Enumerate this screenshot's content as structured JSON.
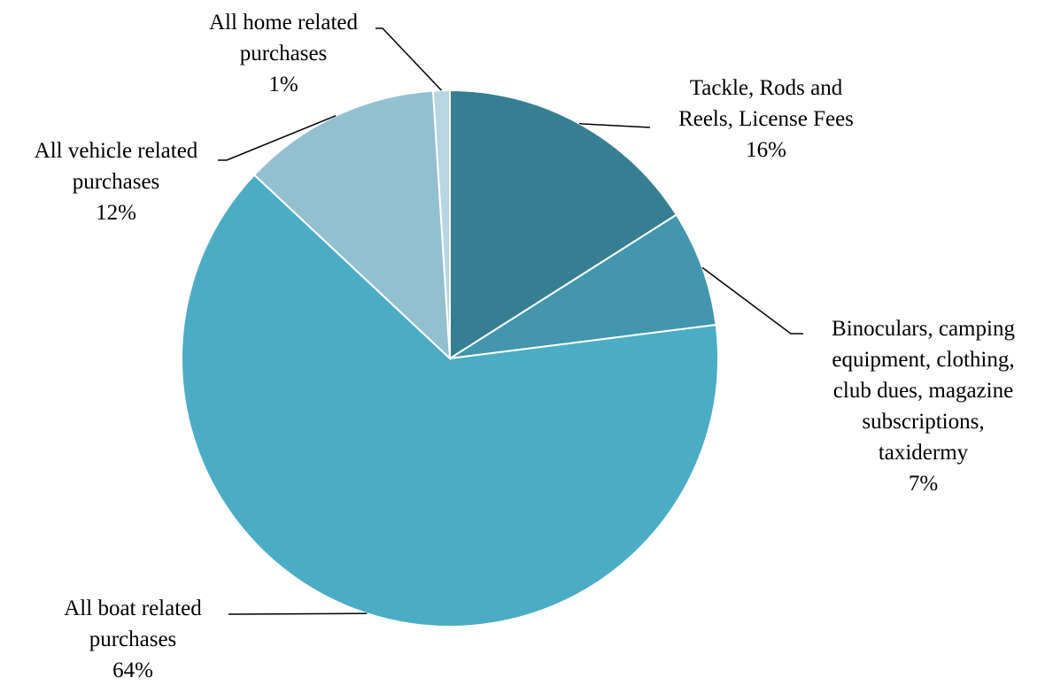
{
  "chart_data": {
    "type": "pie",
    "title": "",
    "start_angle_deg": 0,
    "direction": "clockwise",
    "slices": [
      {
        "label_lines": [
          "Tackle, Rods and",
          "Reels, License Fees"
        ],
        "label": "Tackle, Rods and Reels, License Fees",
        "value": 16,
        "value_label": "16%",
        "color": "#367F93"
      },
      {
        "label_lines": [
          "Binoculars, camping",
          "equipment, clothing,",
          "club dues, magazine",
          "subscriptions,",
          "taxidermy"
        ],
        "label": "Binoculars, camping equipment, clothing, club dues, magazine subscriptions, taxidermy",
        "value": 7,
        "value_label": "7%",
        "color": "#4296AE"
      },
      {
        "label_lines": [
          "All boat related",
          "purchases"
        ],
        "label": "All boat related purchases",
        "value": 64,
        "value_label": "64%",
        "color": "#4BACC6"
      },
      {
        "label_lines": [
          "All vehicle related",
          "purchases"
        ],
        "label": "All vehicle related purchases",
        "value": 12,
        "value_label": "12%",
        "color": "#93C0D1"
      },
      {
        "label_lines": [
          "All home related",
          "purchases"
        ],
        "label": "All home related purchases",
        "value": 1,
        "value_label": "1%",
        "color": "#B7D6E3"
      }
    ]
  }
}
